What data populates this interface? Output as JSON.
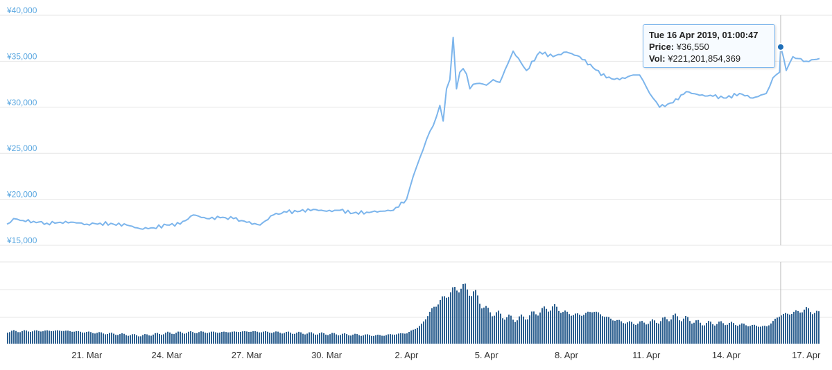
{
  "chart_data": {
    "type": "line",
    "colors": {
      "line": "#7cb5ec",
      "volume": "#2c5f8f",
      "grid": "#e6e6e6",
      "axis_text": "#5aa7e0",
      "crosshair": "#bbbbbb",
      "marker": "#1f6fb8"
    },
    "ylim": [
      15000,
      40000
    ],
    "y_ticks": [
      {
        "value": 15000,
        "label": "¥15,000"
      },
      {
        "value": 20000,
        "label": "¥20,000"
      },
      {
        "value": 25000,
        "label": "¥25,000"
      },
      {
        "value": 30000,
        "label": "¥30,000"
      },
      {
        "value": 35000,
        "label": "¥35,000"
      },
      {
        "value": 40000,
        "label": "¥40,000"
      }
    ],
    "xlim": [
      "2019-03-18",
      "2019-04-17T12:00"
    ],
    "x_ticks": [
      {
        "value": "2019-03-21",
        "label": "21. Mar"
      },
      {
        "value": "2019-03-24",
        "label": "24. Mar"
      },
      {
        "value": "2019-03-27",
        "label": "27. Mar"
      },
      {
        "value": "2019-03-30",
        "label": "30. Mar"
      },
      {
        "value": "2019-04-02",
        "label": "2. Apr"
      },
      {
        "value": "2019-04-05",
        "label": "5. Apr"
      },
      {
        "value": "2019-04-08",
        "label": "8. Apr"
      },
      {
        "value": "2019-04-11",
        "label": "11. Apr"
      },
      {
        "value": "2019-04-14",
        "label": "14. Apr"
      },
      {
        "value": "2019-04-17",
        "label": "17. Apr"
      }
    ],
    "price_series": {
      "x": [
        "2019-03-18T00:00",
        "2019-03-18T06:00",
        "2019-03-18T12:00",
        "2019-03-19T00:00",
        "2019-03-19T12:00",
        "2019-03-20T00:00",
        "2019-03-20T12:00",
        "2019-03-21T00:00",
        "2019-03-21T12:00",
        "2019-03-22T00:00",
        "2019-03-22T12:00",
        "2019-03-23T00:00",
        "2019-03-23T12:00",
        "2019-03-24T00:00",
        "2019-03-24T12:00",
        "2019-03-25T00:00",
        "2019-03-25T12:00",
        "2019-03-26T00:00",
        "2019-03-26T12:00",
        "2019-03-27T00:00",
        "2019-03-27T12:00",
        "2019-03-28T00:00",
        "2019-03-28T12:00",
        "2019-03-29T00:00",
        "2019-03-29T12:00",
        "2019-03-30T00:00",
        "2019-03-30T12:00",
        "2019-03-31T00:00",
        "2019-03-31T12:00",
        "2019-04-01T00:00",
        "2019-04-01T12:00",
        "2019-04-02T00:00",
        "2019-04-02T06:00",
        "2019-04-02T12:00",
        "2019-04-02T18:00",
        "2019-04-03T00:00",
        "2019-04-03T06:00",
        "2019-04-03T09:00",
        "2019-04-03T12:00",
        "2019-04-03T15:00",
        "2019-04-03T18:00",
        "2019-04-03T21:00",
        "2019-04-04T00:00",
        "2019-04-04T03:00",
        "2019-04-04T06:00",
        "2019-04-04T09:00",
        "2019-04-04T12:00",
        "2019-04-04T18:00",
        "2019-04-05T00:00",
        "2019-04-05T06:00",
        "2019-04-05T12:00",
        "2019-04-06T00:00",
        "2019-04-06T12:00",
        "2019-04-07T00:00",
        "2019-04-07T12:00",
        "2019-04-08T00:00",
        "2019-04-08T12:00",
        "2019-04-09T00:00",
        "2019-04-09T12:00",
        "2019-04-10T00:00",
        "2019-04-10T12:00",
        "2019-04-10T18:00",
        "2019-04-11T00:00",
        "2019-04-11T06:00",
        "2019-04-11T12:00",
        "2019-04-12T00:00",
        "2019-04-12T12:00",
        "2019-04-13T00:00",
        "2019-04-13T12:00",
        "2019-04-14T00:00",
        "2019-04-14T12:00",
        "2019-04-15T00:00",
        "2019-04-15T12:00",
        "2019-04-15T18:00",
        "2019-04-16T00:00",
        "2019-04-16T01:00",
        "2019-04-16T06:00",
        "2019-04-16T12:00",
        "2019-04-17T00:00",
        "2019-04-17T12:00"
      ],
      "y": [
        17300,
        17900,
        17700,
        17600,
        17400,
        17500,
        17500,
        17300,
        17400,
        17300,
        17200,
        16800,
        16900,
        17200,
        17300,
        18300,
        17900,
        18000,
        17900,
        17500,
        17200,
        18300,
        18600,
        18700,
        18900,
        18700,
        18800,
        18500,
        18600,
        18700,
        18800,
        20000,
        22500,
        24500,
        26500,
        28000,
        30200,
        28500,
        32000,
        33000,
        37600,
        32000,
        33800,
        34200,
        33600,
        32000,
        32500,
        32600,
        32400,
        33000,
        32700,
        36100,
        34000,
        36000,
        35500,
        36000,
        35500,
        34300,
        33200,
        33000,
        33500,
        33500,
        32200,
        31000,
        30000,
        30500,
        31700,
        31300,
        31200,
        31000,
        31500,
        31000,
        31500,
        33200,
        33800,
        36550,
        34000,
        35500,
        35000,
        35300
      ]
    },
    "volume_series": {
      "x": [
        "2019-03-18",
        "2019-03-20",
        "2019-03-21",
        "2019-03-22",
        "2019-03-23",
        "2019-03-24",
        "2019-03-25",
        "2019-03-26",
        "2019-03-27",
        "2019-03-28",
        "2019-03-29",
        "2019-03-30",
        "2019-03-31",
        "2019-04-01",
        "2019-04-02",
        "2019-04-02T12:00",
        "2019-04-03",
        "2019-04-03T12:00",
        "2019-04-04",
        "2019-04-04T12:00",
        "2019-04-05",
        "2019-04-05T12:00",
        "2019-04-06",
        "2019-04-06T12:00",
        "2019-04-07",
        "2019-04-07T12:00",
        "2019-04-08",
        "2019-04-08T12:00",
        "2019-04-09",
        "2019-04-09T12:00",
        "2019-04-10",
        "2019-04-10T12:00",
        "2019-04-11",
        "2019-04-11T12:00",
        "2019-04-12",
        "2019-04-12T12:00",
        "2019-04-13",
        "2019-04-14",
        "2019-04-15",
        "2019-04-15T12:00",
        "2019-04-16",
        "2019-04-16T12:00",
        "2019-04-17",
        "2019-04-17T12:00"
      ],
      "y": [
        0.15,
        0.16,
        0.14,
        0.12,
        0.1,
        0.13,
        0.14,
        0.14,
        0.15,
        0.14,
        0.13,
        0.12,
        0.11,
        0.1,
        0.13,
        0.22,
        0.45,
        0.6,
        0.7,
        0.62,
        0.4,
        0.35,
        0.3,
        0.33,
        0.4,
        0.45,
        0.37,
        0.35,
        0.4,
        0.32,
        0.27,
        0.25,
        0.26,
        0.28,
        0.33,
        0.3,
        0.25,
        0.25,
        0.22,
        0.21,
        0.35,
        0.38,
        0.42,
        0.36
      ]
    },
    "tooltip": {
      "date": "Tue 16 Apr 2019, 01:00:47",
      "price_label": "Price:",
      "price_value": "¥36,550",
      "vol_label": "Vol:",
      "vol_value": "¥221,201,854,369",
      "x": "2019-04-16T01:00",
      "y": 36550
    }
  }
}
